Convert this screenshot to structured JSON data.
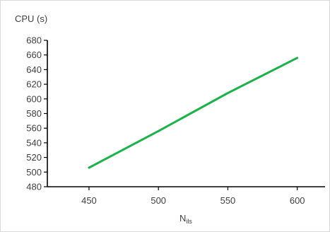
{
  "chart_data": {
    "type": "line",
    "title": "",
    "ylabel": "CPU (s)",
    "xlabel": {
      "main": "N",
      "sub": "ils"
    },
    "x": [
      450,
      500,
      550,
      600
    ],
    "series": [
      {
        "values": [
          506,
          556,
          608,
          656
        ],
        "color": "#1db04b"
      }
    ],
    "xlim": [
      420,
      620
    ],
    "ylim": [
      480,
      680
    ],
    "xticks": [
      450,
      500,
      550,
      600
    ],
    "yticks": [
      480,
      500,
      520,
      540,
      560,
      580,
      600,
      620,
      640,
      660,
      680
    ],
    "grid": false,
    "legend": "none"
  }
}
